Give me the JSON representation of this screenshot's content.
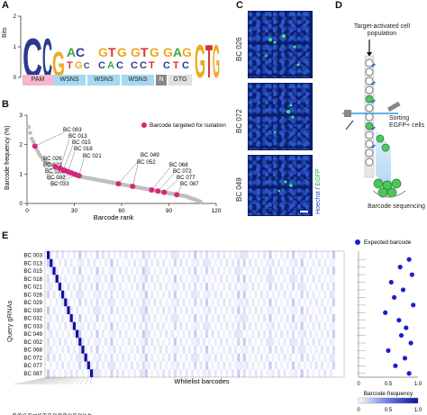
{
  "panels": {
    "a": "A",
    "b": "B",
    "c": "C",
    "d": "D",
    "e": "E"
  },
  "logo": {
    "ylabel": "Bits",
    "yticks": [
      "2",
      "1",
      "0"
    ],
    "segments": [
      "PAM",
      "WSNS",
      "WSNS",
      "WSNS",
      "N",
      "GTG"
    ],
    "colors": {
      "C": "#2b3a8f",
      "G": "#f0a81c",
      "A": "#3aa546",
      "T": "#d7322a"
    }
  },
  "chart_data": [
    {
      "type": "scatter",
      "title": "",
      "xlabel": "Barcode rank",
      "ylabel": "Barcode frequency (%)",
      "xlim": [
        0,
        120
      ],
      "ylim": [
        0,
        3
      ],
      "xticks": [
        0,
        30,
        60,
        90,
        120
      ],
      "yticks": [
        0,
        1,
        2,
        3
      ],
      "legend": "Barcode targeted for isolation",
      "highlight_color": "#d6267c",
      "background_color": "#bfbfbf",
      "all_barcodes": [
        [
          1,
          2.6
        ],
        [
          2,
          2.4
        ],
        [
          3,
          2.2
        ],
        [
          4,
          2.1
        ],
        [
          5,
          1.95
        ],
        [
          6,
          1.85
        ],
        [
          7,
          1.75
        ],
        [
          8,
          1.65
        ],
        [
          9,
          1.58
        ],
        [
          10,
          1.5
        ],
        [
          11,
          1.45
        ],
        [
          12,
          1.42
        ],
        [
          13,
          1.38
        ],
        [
          14,
          1.35
        ],
        [
          15,
          1.32
        ],
        [
          16,
          1.3
        ],
        [
          17,
          1.27
        ],
        [
          18,
          1.25
        ],
        [
          19,
          1.22
        ],
        [
          20,
          1.2
        ],
        [
          21,
          1.18
        ],
        [
          22,
          1.16
        ],
        [
          23,
          1.14
        ],
        [
          24,
          1.12
        ],
        [
          25,
          1.1
        ],
        [
          26,
          1.08
        ],
        [
          27,
          1.06
        ],
        [
          28,
          1.04
        ],
        [
          29,
          1.02
        ],
        [
          30,
          1.0
        ],
        [
          31,
          0.98
        ],
        [
          32,
          0.96
        ],
        [
          33,
          0.94
        ],
        [
          34,
          0.92
        ],
        [
          35,
          0.9
        ],
        [
          36,
          0.89
        ],
        [
          37,
          0.88
        ],
        [
          38,
          0.87
        ],
        [
          39,
          0.86
        ],
        [
          40,
          0.85
        ],
        [
          41,
          0.84
        ],
        [
          42,
          0.83
        ],
        [
          43,
          0.82
        ],
        [
          44,
          0.81
        ],
        [
          45,
          0.8
        ],
        [
          46,
          0.79
        ],
        [
          47,
          0.78
        ],
        [
          48,
          0.77
        ],
        [
          49,
          0.76
        ],
        [
          50,
          0.75
        ],
        [
          51,
          0.74
        ],
        [
          52,
          0.73
        ],
        [
          53,
          0.72
        ],
        [
          54,
          0.71
        ],
        [
          55,
          0.7
        ],
        [
          56,
          0.69
        ],
        [
          57,
          0.68
        ],
        [
          58,
          0.67
        ],
        [
          59,
          0.66
        ],
        [
          60,
          0.65
        ],
        [
          61,
          0.64
        ],
        [
          62,
          0.63
        ],
        [
          63,
          0.62
        ],
        [
          64,
          0.61
        ],
        [
          65,
          0.6
        ],
        [
          66,
          0.59
        ],
        [
          67,
          0.58
        ],
        [
          68,
          0.57
        ],
        [
          69,
          0.56
        ],
        [
          70,
          0.55
        ],
        [
          71,
          0.54
        ],
        [
          72,
          0.53
        ],
        [
          73,
          0.52
        ],
        [
          74,
          0.51
        ],
        [
          75,
          0.5
        ],
        [
          76,
          0.49
        ],
        [
          77,
          0.48
        ],
        [
          78,
          0.47
        ],
        [
          79,
          0.46
        ],
        [
          80,
          0.45
        ],
        [
          81,
          0.44
        ],
        [
          82,
          0.43
        ],
        [
          83,
          0.42
        ],
        [
          84,
          0.41
        ],
        [
          85,
          0.4
        ],
        [
          86,
          0.39
        ],
        [
          87,
          0.38
        ],
        [
          88,
          0.37
        ],
        [
          89,
          0.36
        ],
        [
          90,
          0.35
        ],
        [
          91,
          0.34
        ],
        [
          92,
          0.33
        ],
        [
          93,
          0.32
        ],
        [
          94,
          0.31
        ],
        [
          95,
          0.3
        ],
        [
          96,
          0.29
        ],
        [
          97,
          0.28
        ],
        [
          98,
          0.27
        ],
        [
          99,
          0.26
        ],
        [
          100,
          0.25
        ],
        [
          101,
          0.24
        ],
        [
          102,
          0.22
        ],
        [
          103,
          0.2
        ],
        [
          104,
          0.18
        ],
        [
          105,
          0.16
        ],
        [
          106,
          0.14
        ],
        [
          107,
          0.12
        ],
        [
          108,
          0.1
        ],
        [
          109,
          0.08
        ],
        [
          110,
          0.06
        ]
      ],
      "targeted": [
        {
          "label": "BC 003",
          "x": 5,
          "y": 1.95
        },
        {
          "label": "BC 013",
          "x": 21,
          "y": 1.2
        },
        {
          "label": "BC 015",
          "x": 23,
          "y": 1.14
        },
        {
          "label": "BC 018",
          "x": 26,
          "y": 1.08
        },
        {
          "label": "BC 021",
          "x": 33,
          "y": 0.94
        },
        {
          "label": "BC 026",
          "x": 18,
          "y": 1.25
        },
        {
          "label": "BC 029",
          "x": 24,
          "y": 1.12
        },
        {
          "label": "BC 030",
          "x": 28,
          "y": 1.04
        },
        {
          "label": "BC 032",
          "x": 30,
          "y": 1.0
        },
        {
          "label": "BC 033",
          "x": 31,
          "y": 0.98
        },
        {
          "label": "BC 049",
          "x": 58,
          "y": 0.67
        },
        {
          "label": "BC 052",
          "x": 67,
          "y": 0.58
        },
        {
          "label": "BC 068",
          "x": 79,
          "y": 0.46
        },
        {
          "label": "BC 072",
          "x": 83,
          "y": 0.42
        },
        {
          "label": "BC 077",
          "x": 87,
          "y": 0.38
        },
        {
          "label": "BC 087",
          "x": 95,
          "y": 0.3
        }
      ]
    },
    {
      "type": "heatmap",
      "xlabel": "Whitelist barcodes",
      "ylabel": "Query gRNAs",
      "rows": [
        "BC 003",
        "BC 013",
        "BC 015",
        "BC 018",
        "BC 021",
        "BC 026",
        "BC 029",
        "BC 030",
        "BC 032",
        "BC 033",
        "BC 049",
        "BC 052",
        "BC 068",
        "BC 072",
        "BC 077",
        "BC 087"
      ],
      "colorbar": {
        "label": "Barcode frequency",
        "ticks": [
          "0",
          "0.5",
          "1.0"
        ],
        "min": 0,
        "max": 1
      }
    },
    {
      "type": "scatter",
      "legend": "Expected barcode",
      "xlim": [
        0,
        1
      ],
      "xticks": [
        "0",
        "0.5",
        "1.0"
      ],
      "point_color": "#1a1fcf",
      "values": [
        0.85,
        0.7,
        0.9,
        0.55,
        0.75,
        0.6,
        0.92,
        0.45,
        0.68,
        0.8,
        0.72,
        0.88,
        0.5,
        0.78,
        0.62,
        0.85
      ]
    }
  ],
  "microscopy": {
    "labels": [
      "BC 026",
      "BC 072",
      "BC 049"
    ],
    "stain_hoechst": "Hoechst",
    "stain_sep": " / ",
    "stain_egfp": "EGFP"
  },
  "schematic": {
    "top_label": "Target-activated cell population",
    "sorting_label": "Sorting EGFP+ cells",
    "bottom_label": "Barcode sequencing"
  }
}
